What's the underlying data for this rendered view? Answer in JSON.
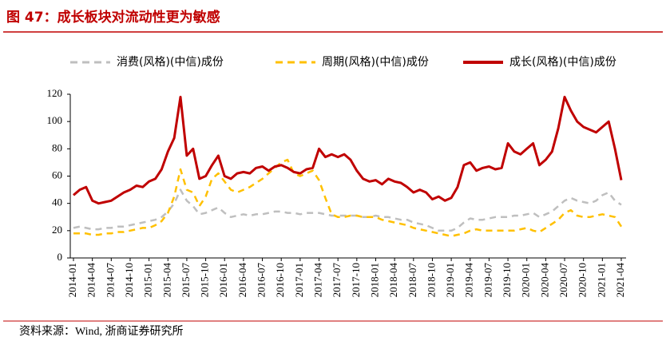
{
  "chart_data": {
    "type": "line",
    "title": "图 47：成长板块对流动性更为敏感",
    "source": "资料来源：Wind, 浙商证券研究所",
    "legend": "top",
    "categories": [
      "2014-01",
      null,
      null,
      "2014-04",
      null,
      null,
      "2014-07",
      null,
      null,
      "2014-10",
      null,
      null,
      "2015-01",
      null,
      null,
      "2015-04",
      null,
      null,
      "2015-07",
      null,
      null,
      "2015-10",
      null,
      null,
      "2016-01",
      null,
      null,
      "2016-04",
      null,
      null,
      "2016-07",
      null,
      null,
      "2016-10",
      null,
      null,
      "2017-01",
      null,
      null,
      "2017-04",
      null,
      null,
      "2017-07",
      null,
      null,
      "2017-10",
      null,
      null,
      "2018-01",
      null,
      null,
      "2018-04",
      null,
      null,
      "2018-07",
      null,
      null,
      "2018-10",
      null,
      null,
      "2019-01",
      null,
      null,
      "2019-04",
      null,
      null,
      "2019-07",
      null,
      null,
      "2019-10",
      null,
      null,
      "2020-01",
      null,
      null,
      "2020-04",
      null,
      null,
      "2020-07",
      null,
      null,
      "2020-10",
      null,
      null,
      "2021-01",
      null,
      null,
      "2021-04"
    ],
    "series": [
      {
        "name": "消费(风格)(中信)成份",
        "color": "#bfbfbf",
        "dash": true,
        "values": [
          22,
          23,
          22,
          21,
          21,
          22,
          22,
          23,
          23,
          24,
          25,
          26,
          27,
          28,
          30,
          34,
          40,
          50,
          42,
          38,
          32,
          33,
          35,
          37,
          33,
          30,
          31,
          32,
          31,
          32,
          32,
          33,
          34,
          34,
          33,
          33,
          32,
          33,
          33,
          33,
          32,
          31,
          31,
          31,
          31,
          31,
          30,
          30,
          31,
          30,
          30,
          29,
          28,
          28,
          26,
          25,
          24,
          22,
          20,
          20,
          20,
          22,
          26,
          29,
          28,
          28,
          29,
          30,
          30,
          30,
          31,
          31,
          32,
          33,
          30,
          32,
          34,
          38,
          42,
          44,
          42,
          41,
          40,
          42,
          46,
          48,
          42,
          39
        ]
      },
      {
        "name": "周期(风格)(中信)成份",
        "color": "#ffc000",
        "dash": true,
        "values": [
          18,
          18,
          18,
          17,
          17,
          18,
          18,
          19,
          19,
          20,
          21,
          22,
          22,
          24,
          27,
          33,
          45,
          65,
          50,
          48,
          38,
          45,
          58,
          62,
          56,
          50,
          48,
          50,
          52,
          55,
          58,
          62,
          66,
          70,
          72,
          62,
          60,
          62,
          64,
          57,
          44,
          32,
          30,
          30,
          31,
          31,
          30,
          30,
          30,
          28,
          27,
          26,
          25,
          24,
          22,
          21,
          20,
          19,
          18,
          17,
          16,
          17,
          18,
          20,
          21,
          20,
          20,
          20,
          20,
          20,
          20,
          21,
          22,
          20,
          19,
          22,
          25,
          28,
          33,
          35,
          31,
          30,
          30,
          31,
          32,
          31,
          30,
          23
        ]
      },
      {
        "name": "成长(风格)(中信)成份",
        "color": "#c00000",
        "dash": false,
        "values": [
          46,
          50,
          52,
          42,
          40,
          41,
          42,
          45,
          48,
          50,
          53,
          52,
          56,
          58,
          65,
          78,
          88,
          118,
          75,
          80,
          58,
          60,
          68,
          75,
          60,
          58,
          62,
          63,
          62,
          66,
          67,
          64,
          67,
          68,
          66,
          63,
          62,
          65,
          66,
          80,
          74,
          76,
          74,
          76,
          72,
          64,
          58,
          56,
          57,
          54,
          58,
          56,
          55,
          52,
          48,
          50,
          48,
          43,
          45,
          42,
          44,
          52,
          68,
          70,
          64,
          66,
          67,
          65,
          66,
          84,
          78,
          76,
          80,
          84,
          68,
          72,
          78,
          95,
          118,
          108,
          100,
          96,
          94,
          92,
          96,
          100,
          80,
          57
        ]
      }
    ],
    "ylim": [
      0,
      120
    ],
    "yticks": [
      0,
      20,
      40,
      60,
      80,
      100,
      120
    ]
  }
}
